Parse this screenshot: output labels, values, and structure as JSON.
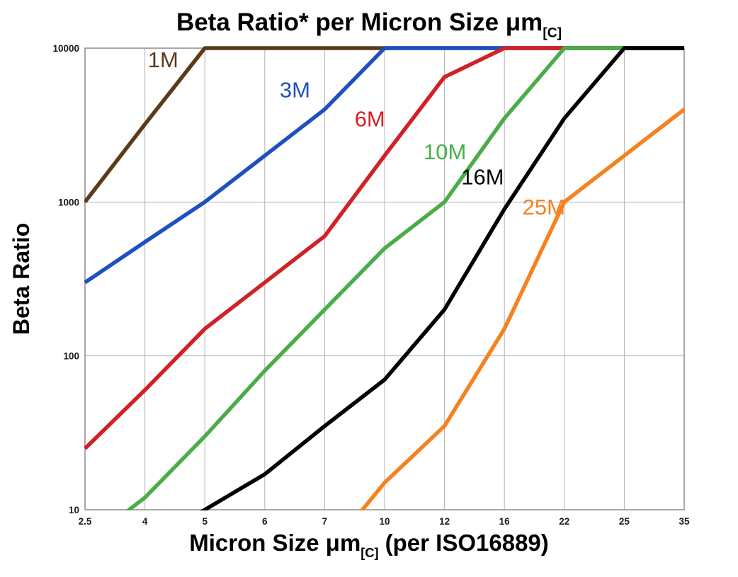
{
  "chart_data": {
    "type": "line",
    "title": {
      "main": "Beta Ratio* per Micron Size μm",
      "sub": "[C]"
    },
    "ylabel": "Beta Ratio",
    "xlabel": {
      "pre": "Micron Size μm",
      "sub": "[C]",
      "post": " (per ISO16889)"
    },
    "x_categories": [
      "2.5",
      "4",
      "5",
      "6",
      "7",
      "10",
      "12",
      "16",
      "22",
      "25",
      "35"
    ],
    "y_scale": "log",
    "ylim": [
      10,
      10000
    ],
    "y_ticks": [
      "10",
      "100",
      "1000",
      "10000"
    ],
    "grid": true,
    "legend_position": "inline-labels",
    "colors": {
      "grid": "#b3b3b3",
      "border": "#8c8c8c",
      "tick_text": "#1a1a1a"
    },
    "series": [
      {
        "name": "1M",
        "color": "#5b3a18",
        "values": [
          1000,
          3200,
          10000,
          10000,
          10000,
          10000,
          10000,
          10000,
          10000,
          10000,
          10000
        ],
        "label": {
          "xi": 1.05,
          "y": 7500
        }
      },
      {
        "name": "3M",
        "color": "#1f4fc0",
        "values": [
          300,
          550,
          1000,
          2000,
          4000,
          10000,
          10000,
          10000,
          10000,
          10000,
          10000
        ],
        "label": {
          "xi": 3.25,
          "y": 4800
        }
      },
      {
        "name": "6M",
        "color": "#d22027",
        "values": [
          25,
          60,
          150,
          300,
          600,
          2000,
          6500,
          10000,
          10000,
          10000,
          10000
        ],
        "label": {
          "xi": 4.5,
          "y": 3100
        }
      },
      {
        "name": "10M",
        "color": "#4aad4a",
        "values": [
          6,
          12,
          30,
          80,
          200,
          500,
          1000,
          3500,
          10000,
          10000,
          10000
        ],
        "label": {
          "xi": 5.65,
          "y": 1900
        }
      },
      {
        "name": "16M",
        "color": "#000000",
        "values": [
          null,
          6,
          10,
          17,
          35,
          70,
          200,
          900,
          3500,
          10000,
          10000
        ],
        "label": {
          "xi": 6.28,
          "y": 1300
        }
      },
      {
        "name": "25M",
        "color": "#f58220",
        "values": [
          null,
          null,
          null,
          null,
          5,
          15,
          35,
          150,
          1000,
          2000,
          4000
        ],
        "label": {
          "xi": 7.3,
          "y": 830
        }
      }
    ]
  }
}
